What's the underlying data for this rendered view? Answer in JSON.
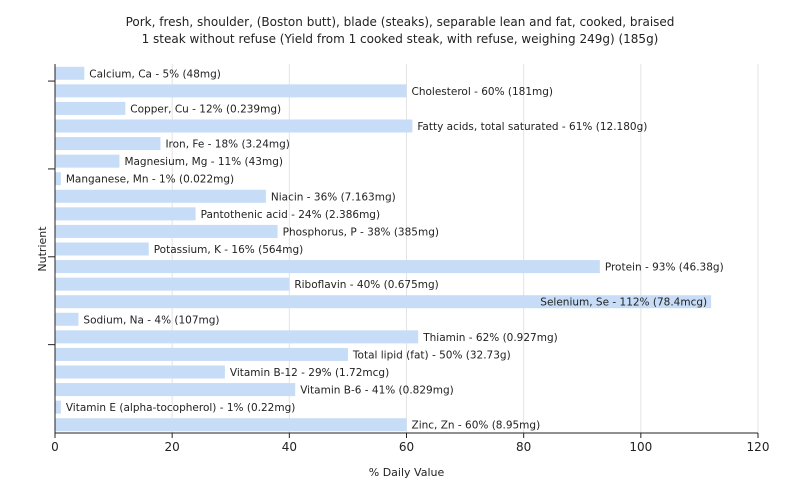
{
  "chart_data": {
    "type": "bar",
    "orientation": "horizontal",
    "title": "Pork, fresh, shoulder, (Boston butt), blade (steaks), separable lean and fat, cooked, braised",
    "subtitle": "1 steak without refuse (Yield from 1 cooked steak, with refuse, weighing 249g) (185g)",
    "xlabel": "% Daily Value",
    "ylabel": "Nutrient",
    "xlim": [
      0,
      120
    ],
    "xticks": [
      0,
      20,
      40,
      60,
      80,
      100,
      120
    ],
    "grid": true,
    "bar_color": "#c6dcf7",
    "categories": [
      "Calcium, Ca - 5% (48mg)",
      "Cholesterol - 60% (181mg)",
      "Copper, Cu - 12% (0.239mg)",
      "Fatty acids, total saturated - 61% (12.180g)",
      "Iron, Fe - 18% (3.24mg)",
      "Magnesium, Mg - 11% (43mg)",
      "Manganese, Mn - 1% (0.022mg)",
      "Niacin - 36% (7.163mg)",
      "Pantothenic acid - 24% (2.386mg)",
      "Phosphorus, P - 38% (385mg)",
      "Potassium, K - 16% (564mg)",
      "Protein - 93% (46.38g)",
      "Riboflavin - 40% (0.675mg)",
      "Selenium, Se - 112% (78.4mcg)",
      "Sodium, Na - 4% (107mg)",
      "Thiamin - 62% (0.927mg)",
      "Total lipid (fat) - 50% (32.73g)",
      "Vitamin B-12 - 29% (1.72mcg)",
      "Vitamin B-6 - 41% (0.829mg)",
      "Vitamin E (alpha-tocopherol) - 1% (0.22mg)",
      "Zinc, Zn - 60% (8.95mg)"
    ],
    "values": [
      5,
      60,
      12,
      61,
      18,
      11,
      1,
      36,
      24,
      38,
      16,
      93,
      40,
      112,
      4,
      62,
      50,
      29,
      41,
      1,
      60
    ]
  }
}
